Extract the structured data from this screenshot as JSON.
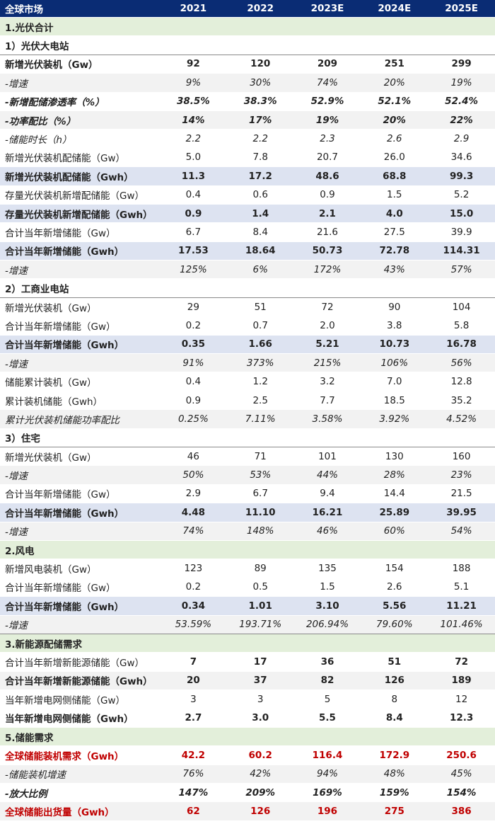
{
  "header": {
    "label": "全球市场",
    "years": [
      "2021",
      "2022",
      "2023E",
      "2024E",
      "2025E"
    ]
  },
  "rows": [
    {
      "kind": "section",
      "label": "1.光伏合计"
    },
    {
      "kind": "subsection",
      "label": "1）光伏大电站"
    },
    {
      "kind": "data",
      "style": "bold",
      "label": "新增光伏装机（Gw）",
      "values": [
        "92",
        "120",
        "209",
        "251",
        "299"
      ]
    },
    {
      "kind": "data",
      "style": "italic shade",
      "label": "-增速",
      "values": [
        "9%",
        "30%",
        "74%",
        "20%",
        "19%"
      ]
    },
    {
      "kind": "data",
      "style": "italic bold",
      "label": "-新增配储渗透率（%）",
      "values": [
        "38.5%",
        "38.3%",
        "52.9%",
        "52.1%",
        "52.4%"
      ]
    },
    {
      "kind": "data",
      "style": "italic bold shade",
      "label": "-功率配比（%）",
      "values": [
        "14%",
        "17%",
        "19%",
        "20%",
        "22%"
      ]
    },
    {
      "kind": "data",
      "style": "italic",
      "label": "-储能时长（h）",
      "values": [
        "2.2",
        "2.2",
        "2.3",
        "2.6",
        "2.9"
      ]
    },
    {
      "kind": "data",
      "style": "",
      "label": "新增光伏装机配储能（Gw）",
      "values": [
        "5.0",
        "7.8",
        "20.7",
        "26.0",
        "34.6"
      ]
    },
    {
      "kind": "data",
      "style": "bold blue",
      "label": "新增光伏装机配储能（Gwh）",
      "values": [
        "11.3",
        "17.2",
        "48.6",
        "68.8",
        "99.3"
      ]
    },
    {
      "kind": "data",
      "style": "",
      "label": "存量光伏装机新增配储能（Gw）",
      "values": [
        "0.4",
        "0.6",
        "0.9",
        "1.5",
        "5.2"
      ]
    },
    {
      "kind": "data",
      "style": "bold blue",
      "label": "存量光伏装机新增配储能（Gwh）",
      "values": [
        "0.9",
        "1.4",
        "2.1",
        "4.0",
        "15.0"
      ]
    },
    {
      "kind": "data",
      "style": "",
      "label": "合计当年新增储能（Gw）",
      "values": [
        "6.7",
        "8.4",
        "21.6",
        "27.5",
        "39.9"
      ]
    },
    {
      "kind": "data",
      "style": "bold blue",
      "label": "合计当年新增储能（Gwh）",
      "values": [
        "17.53",
        "18.64",
        "50.73",
        "72.78",
        "114.31"
      ]
    },
    {
      "kind": "data",
      "style": "italic shade",
      "label": "-增速",
      "values": [
        "125%",
        "6%",
        "172%",
        "43%",
        "57%"
      ]
    },
    {
      "kind": "subsection",
      "label": "2）工商业电站"
    },
    {
      "kind": "data",
      "style": "",
      "label": "新增光伏装机（Gw）",
      "values": [
        "29",
        "51",
        "72",
        "90",
        "104"
      ]
    },
    {
      "kind": "data",
      "style": "",
      "label": "合计当年新增储能（Gw）",
      "values": [
        "0.2",
        "0.7",
        "2.0",
        "3.8",
        "5.8"
      ]
    },
    {
      "kind": "data",
      "style": "bold blue",
      "label": "合计当年新增储能（Gwh）",
      "values": [
        "0.35",
        "1.66",
        "5.21",
        "10.73",
        "16.78"
      ]
    },
    {
      "kind": "data",
      "style": "italic shade",
      "label": "-增速",
      "values": [
        "91%",
        "373%",
        "215%",
        "106%",
        "56%"
      ]
    },
    {
      "kind": "data",
      "style": "",
      "label": "储能累计装机（Gw）",
      "values": [
        "0.4",
        "1.2",
        "3.2",
        "7.0",
        "12.8"
      ]
    },
    {
      "kind": "data",
      "style": "",
      "label": "累计装机储能（Gwh）",
      "values": [
        "0.9",
        "2.5",
        "7.7",
        "18.5",
        "35.2"
      ]
    },
    {
      "kind": "data",
      "style": "italic shade",
      "label": "累计光伏装机储能功率配比",
      "values": [
        "0.25%",
        "7.11%",
        "3.58%",
        "3.92%",
        "4.52%"
      ]
    },
    {
      "kind": "subsection",
      "label": "3）住宅"
    },
    {
      "kind": "data",
      "style": "",
      "label": "新增光伏装机（Gw）",
      "values": [
        "46",
        "71",
        "101",
        "130",
        "160"
      ]
    },
    {
      "kind": "data",
      "style": "italic shade",
      "label": "-增速",
      "values": [
        "50%",
        "53%",
        "44%",
        "28%",
        "23%"
      ]
    },
    {
      "kind": "data",
      "style": "",
      "label": "合计当年新增储能（Gw）",
      "values": [
        "2.9",
        "6.7",
        "9.4",
        "14.4",
        "21.5"
      ]
    },
    {
      "kind": "data",
      "style": "bold blue",
      "label": "合计当年新增储能（Gwh）",
      "values": [
        "4.48",
        "11.10",
        "16.21",
        "25.89",
        "39.95"
      ]
    },
    {
      "kind": "data",
      "style": "italic shade",
      "label": "-增速",
      "values": [
        "74%",
        "148%",
        "46%",
        "60%",
        "54%"
      ]
    },
    {
      "kind": "section",
      "label": "2.风电"
    },
    {
      "kind": "data",
      "style": "",
      "label": "新增风电装机（Gw）",
      "values": [
        "123",
        "89",
        "135",
        "154",
        "188"
      ]
    },
    {
      "kind": "data",
      "style": "",
      "label": "合计当年新增储能（Gw）",
      "values": [
        "0.2",
        "0.5",
        "1.5",
        "2.6",
        "5.1"
      ]
    },
    {
      "kind": "data",
      "style": "bold blue",
      "label": "合计当年新增储能（Gwh）",
      "values": [
        "0.34",
        "1.01",
        "3.10",
        "5.56",
        "11.21"
      ]
    },
    {
      "kind": "data",
      "style": "italic shade sep",
      "label": "-增速",
      "values": [
        "53.59%",
        "193.71%",
        "206.94%",
        "79.60%",
        "101.46%"
      ]
    },
    {
      "kind": "section",
      "label": "3.新能源配储需求"
    },
    {
      "kind": "data",
      "style": "boldvals",
      "label": "合计当年新增新能源储能（Gw）",
      "values": [
        "7",
        "17",
        "36",
        "51",
        "72"
      ]
    },
    {
      "kind": "data",
      "style": "bold shade",
      "label": "合计当年新增新能源储能（Gwh）",
      "values": [
        "20",
        "37",
        "82",
        "126",
        "189"
      ]
    },
    {
      "kind": "data",
      "style": "",
      "label": "当年新增电网侧储能（Gw）",
      "values": [
        "3",
        "3",
        "5",
        "8",
        "12"
      ]
    },
    {
      "kind": "data",
      "style": "bold",
      "label": "当年新增电网侧储能（Gwh）",
      "values": [
        "2.7",
        "3.0",
        "5.5",
        "8.4",
        "12.3"
      ]
    },
    {
      "kind": "section",
      "label": "5.储能需求"
    },
    {
      "kind": "data",
      "style": "red",
      "label": "全球储能装机需求（Gwh）",
      "values": [
        "42.2",
        "60.2",
        "116.4",
        "172.9",
        "250.6"
      ]
    },
    {
      "kind": "data",
      "style": "italic shade",
      "label": "-储能装机增速",
      "values": [
        "76%",
        "42%",
        "94%",
        "48%",
        "45%"
      ]
    },
    {
      "kind": "data",
      "style": "italic bold",
      "label": "-放大比例",
      "values": [
        "147%",
        "209%",
        "169%",
        "159%",
        "154%"
      ]
    },
    {
      "kind": "data",
      "style": "red shade",
      "label": "全球储能出货量（Gwh）",
      "values": [
        "62",
        "126",
        "196",
        "275",
        "386"
      ]
    }
  ]
}
